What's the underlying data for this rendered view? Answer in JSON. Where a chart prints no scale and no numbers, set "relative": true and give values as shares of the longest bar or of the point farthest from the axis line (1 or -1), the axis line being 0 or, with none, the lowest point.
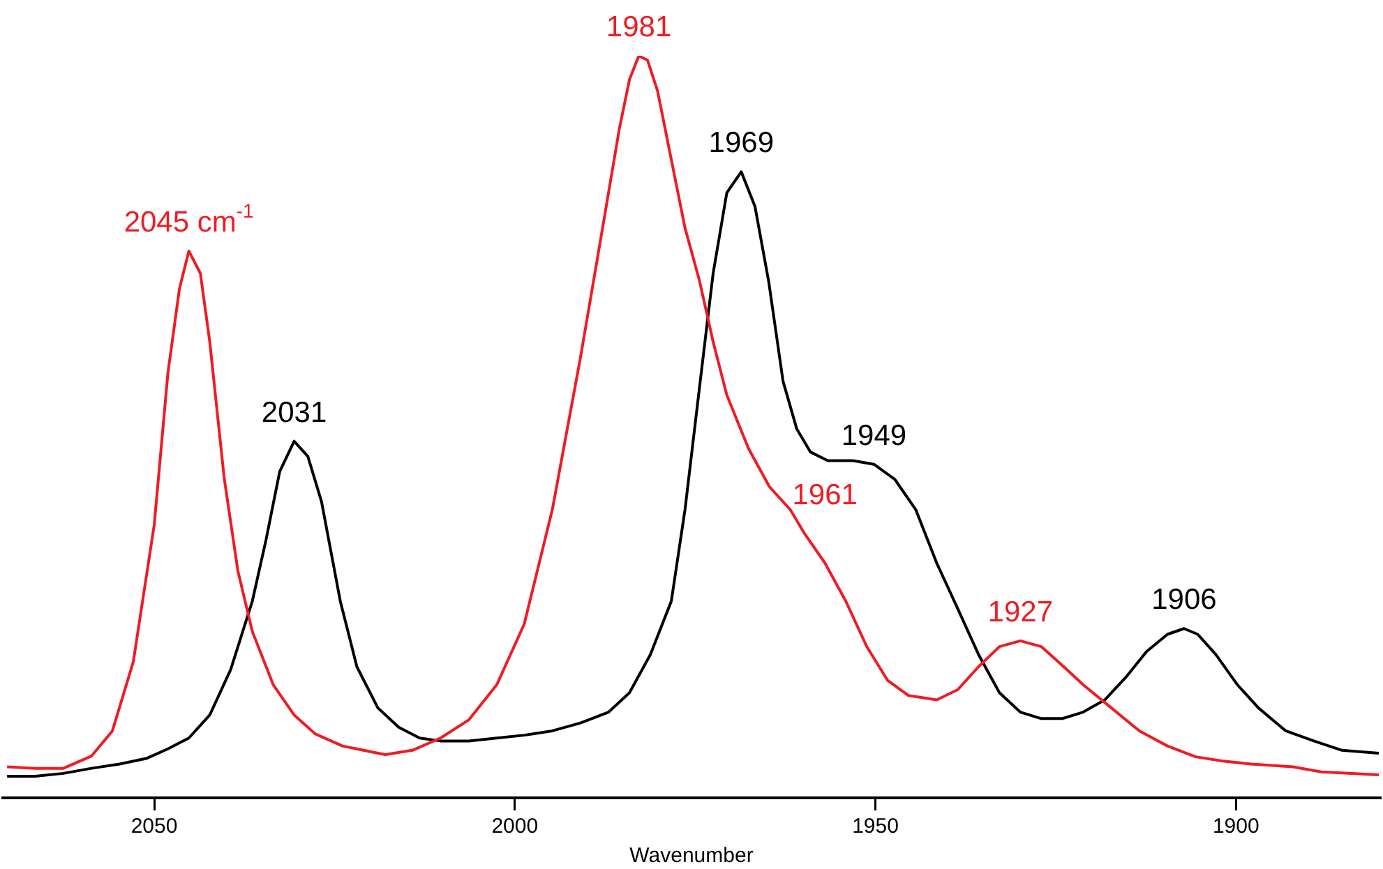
{
  "chart_data": {
    "type": "line",
    "relative": true,
    "xlabel": "Wavenumber",
    "xlim": [
      2071,
      1880
    ],
    "xticks": [
      2050,
      2000,
      1950,
      1900
    ],
    "grid": false,
    "legend": false,
    "marker": "none",
    "line_style": "solid",
    "series": [
      {
        "color": "#ee1c25",
        "x": [
          2070.4,
          2066.5,
          2062.6,
          2058.7,
          2055.8,
          2052.9,
          2050.0,
          2048.1,
          2046.5,
          2045.2,
          2043.6,
          2042.3,
          2040.3,
          2038.4,
          2036.4,
          2033.5,
          2030.6,
          2027.7,
          2023.9,
          2018.0,
          2014.2,
          2010.3,
          2006.4,
          2002.5,
          1998.7,
          1994.8,
          1990.9,
          1988.0,
          1985.5,
          1984.1,
          1982.8,
          1981.6,
          1980.2,
          1978.3,
          1976.4,
          1974.4,
          1972.5,
          1970.6,
          1967.6,
          1964.7,
          1961.8,
          1959.9,
          1957.0,
          1954.1,
          1951.2,
          1948.3,
          1945.4,
          1941.5,
          1938.6,
          1935.7,
          1932.8,
          1929.9,
          1927.0,
          1924.1,
          1921.2,
          1917.3,
          1913.4,
          1909.5,
          1905.6,
          1901.8,
          1897.9,
          1892.1,
          1888.2,
          1880.2
        ],
        "values": [
          0.013,
          0.011,
          0.011,
          0.028,
          0.063,
          0.159,
          0.349,
          0.56,
          0.677,
          0.729,
          0.698,
          0.603,
          0.414,
          0.285,
          0.201,
          0.127,
          0.085,
          0.059,
          0.042,
          0.03,
          0.036,
          0.053,
          0.078,
          0.127,
          0.211,
          0.37,
          0.581,
          0.751,
          0.899,
          0.967,
          1.0,
          0.994,
          0.951,
          0.856,
          0.761,
          0.688,
          0.603,
          0.529,
          0.455,
          0.402,
          0.37,
          0.338,
          0.296,
          0.243,
          0.18,
          0.133,
          0.112,
          0.106,
          0.12,
          0.152,
          0.18,
          0.188,
          0.18,
          0.154,
          0.127,
          0.095,
          0.063,
          0.042,
          0.027,
          0.021,
          0.017,
          0.013,
          0.006,
          0.002
        ]
      },
      {
        "color": "#000000",
        "x": [
          2070.4,
          2066.5,
          2062.6,
          2058.7,
          2054.8,
          2051.0,
          2048.1,
          2045.2,
          2042.3,
          2039.4,
          2036.4,
          2034.5,
          2032.6,
          2030.6,
          2028.7,
          2026.8,
          2024.2,
          2021.9,
          2019.0,
          2016.1,
          2013.2,
          2010.3,
          2006.4,
          2002.5,
          1998.7,
          1994.8,
          1990.9,
          1987.0,
          1984.1,
          1981.2,
          1978.3,
          1976.4,
          1974.4,
          1972.5,
          1970.6,
          1968.6,
          1966.7,
          1964.8,
          1962.8,
          1960.9,
          1959.0,
          1956.6,
          1953.1,
          1950.2,
          1947.3,
          1944.4,
          1941.5,
          1938.6,
          1935.7,
          1932.8,
          1929.9,
          1927.0,
          1924.1,
          1921.2,
          1918.2,
          1915.3,
          1912.4,
          1909.5,
          1907.2,
          1905.3,
          1902.8,
          1899.8,
          1896.9,
          1893.1,
          1889.2,
          1885.3,
          1880.2
        ],
        "values": [
          0.0,
          0.0,
          0.004,
          0.011,
          0.017,
          0.025,
          0.038,
          0.053,
          0.085,
          0.148,
          0.243,
          0.328,
          0.423,
          0.465,
          0.444,
          0.381,
          0.243,
          0.152,
          0.095,
          0.068,
          0.053,
          0.049,
          0.049,
          0.053,
          0.057,
          0.063,
          0.074,
          0.089,
          0.116,
          0.169,
          0.243,
          0.37,
          0.539,
          0.698,
          0.81,
          0.839,
          0.791,
          0.687,
          0.548,
          0.482,
          0.45,
          0.438,
          0.438,
          0.433,
          0.412,
          0.37,
          0.296,
          0.233,
          0.169,
          0.116,
          0.089,
          0.08,
          0.08,
          0.089,
          0.106,
          0.137,
          0.173,
          0.197,
          0.205,
          0.197,
          0.169,
          0.127,
          0.095,
          0.063,
          0.049,
          0.036,
          0.032
        ]
      }
    ],
    "annotations": [
      {
        "text": "2045 cm$^{-1}$",
        "x": 2045.2,
        "y": 0.729
      },
      {
        "text": "2031",
        "x": 2030.6,
        "y": 0.465
      },
      {
        "text": "1981",
        "x": 1982.8,
        "y": 1.0
      },
      {
        "text": "1969",
        "x": 1968.6,
        "y": 0.839
      },
      {
        "text": "1949",
        "x": 1950.2,
        "y": 0.433
      },
      {
        "text": "1961",
        "x": 1957.0,
        "y": 0.296
      },
      {
        "text": "1927",
        "x": 1929.9,
        "y": 0.188
      },
      {
        "text": "1906",
        "x": 1907.2,
        "y": 0.205
      }
    ]
  }
}
